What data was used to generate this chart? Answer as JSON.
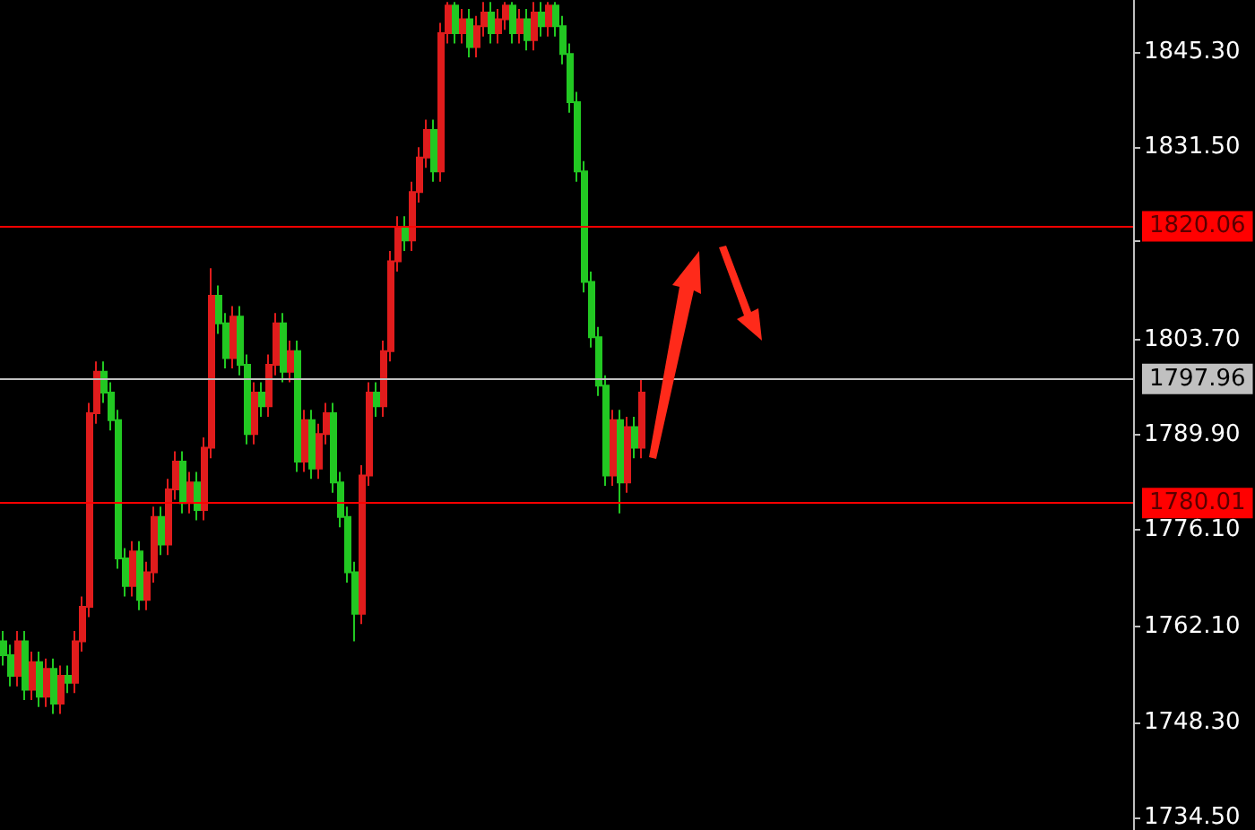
{
  "chart_data": {
    "type": "candlestick",
    "categories": [
      null,
      null,
      null,
      null,
      null,
      null,
      null,
      null,
      null,
      null,
      null,
      null,
      null,
      null,
      null,
      null,
      null,
      null,
      null,
      null,
      null,
      null,
      null,
      null,
      null,
      null,
      null,
      null,
      null,
      null,
      null,
      null,
      null,
      null,
      null,
      null,
      null,
      null,
      null,
      null,
      null,
      null,
      null,
      null,
      null,
      null,
      null,
      null,
      null,
      null,
      null,
      null,
      null,
      null,
      null,
      null,
      null,
      null,
      null,
      null,
      null,
      null,
      null,
      null,
      null,
      null,
      null,
      null,
      null,
      null,
      null,
      null,
      null,
      null,
      null,
      null,
      null,
      null,
      null,
      null,
      null,
      null,
      null,
      null,
      null,
      null,
      null,
      null,
      null,
      null,
      null,
      null,
      null,
      null,
      null,
      null,
      null,
      null,
      null,
      null,
      null,
      null,
      null,
      null,
      null,
      null,
      null,
      null,
      null,
      null,
      null,
      null,
      null,
      null,
      null,
      null,
      null,
      null,
      null,
      null,
      null,
      null,
      null,
      null,
      null,
      null,
      null,
      null,
      null,
      null,
      null,
      null,
      null,
      null,
      null,
      null,
      null,
      null,
      null,
      null,
      null,
      null,
      null,
      null,
      null,
      null,
      null,
      null,
      null,
      null,
      null,
      null,
      null,
      null,
      null,
      null,
      null,
      null
    ],
    "ohlc": [
      [
        1760,
        1761.5,
        1756.5,
        1758
      ],
      [
        1758,
        1759.5,
        1753.5,
        1755
      ],
      [
        1755,
        1761.5,
        1753.5,
        1760
      ],
      [
        1760,
        1761.5,
        1751.5,
        1753
      ],
      [
        1753,
        1758.5,
        1751.5,
        1757
      ],
      [
        1757,
        1758.5,
        1750.5,
        1752
      ],
      [
        1752,
        1757.5,
        1750.5,
        1756
      ],
      [
        1756,
        1757.5,
        1749.5,
        1751
      ],
      [
        1751,
        1756.5,
        1749.5,
        1755
      ],
      [
        1755,
        1756.5,
        1752.5,
        1754
      ],
      [
        1754,
        1761.5,
        1752.5,
        1760
      ],
      [
        1760,
        1766.5,
        1758.5,
        1765
      ],
      [
        1765,
        1794.5,
        1763.5,
        1793
      ],
      [
        1793,
        1800.5,
        1791.5,
        1799
      ],
      [
        1799,
        1800.5,
        1794.5,
        1796
      ],
      [
        1796,
        1797.5,
        1790.5,
        1792
      ],
      [
        1792,
        1793.5,
        1770.5,
        1772
      ],
      [
        1772,
        1773.5,
        1766.5,
        1768
      ],
      [
        1768,
        1774.5,
        1766.5,
        1773
      ],
      [
        1773,
        1774.5,
        1764.5,
        1766
      ],
      [
        1766,
        1771.5,
        1764.5,
        1770
      ],
      [
        1770,
        1779.5,
        1768.5,
        1778
      ],
      [
        1778,
        1779.5,
        1772.5,
        1774
      ],
      [
        1774,
        1783.5,
        1772.5,
        1782
      ],
      [
        1782,
        1787.5,
        1780.5,
        1786
      ],
      [
        1786,
        1787.5,
        1778.5,
        1780
      ],
      [
        1780,
        1784.5,
        1778.5,
        1783
      ],
      [
        1783,
        1784.5,
        1777.5,
        1779
      ],
      [
        1779,
        1789.5,
        1777.5,
        1788
      ],
      [
        1788,
        1814,
        1786.5,
        1810
      ],
      [
        1810,
        1811.5,
        1804.5,
        1806
      ],
      [
        1806,
        1807.5,
        1799.5,
        1801
      ],
      [
        1801,
        1808.5,
        1799.5,
        1807
      ],
      [
        1807,
        1808.5,
        1798.5,
        1800
      ],
      [
        1800,
        1801.5,
        1788.5,
        1790
      ],
      [
        1790,
        1797.5,
        1788.5,
        1796
      ],
      [
        1796,
        1797.5,
        1792.5,
        1794
      ],
      [
        1794,
        1801.5,
        1792.5,
        1800
      ],
      [
        1800,
        1807.5,
        1798.5,
        1806
      ],
      [
        1806,
        1807.5,
        1797.5,
        1799
      ],
      [
        1799,
        1803.5,
        1797.5,
        1802
      ],
      [
        1802,
        1803.5,
        1784.5,
        1786
      ],
      [
        1786,
        1793.5,
        1784.5,
        1792
      ],
      [
        1792,
        1793.5,
        1783.5,
        1785
      ],
      [
        1785,
        1791.5,
        1783.5,
        1790
      ],
      [
        1790,
        1794.5,
        1788.5,
        1793
      ],
      [
        1793,
        1794.5,
        1781.5,
        1783
      ],
      [
        1783,
        1784.5,
        1776.5,
        1778
      ],
      [
        1778,
        1779.5,
        1768.5,
        1770
      ],
      [
        1770,
        1771.5,
        1760,
        1764
      ],
      [
        1764,
        1785.5,
        1762.5,
        1784
      ],
      [
        1784,
        1797.5,
        1782.5,
        1796
      ],
      [
        1796,
        1797.5,
        1792.5,
        1794
      ],
      [
        1794,
        1803.5,
        1792.5,
        1802
      ],
      [
        1802,
        1816.5,
        1800.5,
        1815
      ],
      [
        1815,
        1821.5,
        1813.5,
        1820
      ],
      [
        1820,
        1821.5,
        1816.5,
        1818
      ],
      [
        1818,
        1826.5,
        1816.5,
        1825
      ],
      [
        1825,
        1831.5,
        1823.5,
        1830
      ],
      [
        1830,
        1835.5,
        1828.5,
        1834
      ],
      [
        1834,
        1835.5,
        1826.5,
        1828
      ],
      [
        1828,
        1849.5,
        1826.5,
        1848
      ],
      [
        1848,
        1852.5,
        1846.5,
        1852
      ],
      [
        1852,
        1852.5,
        1846.5,
        1848
      ],
      [
        1848,
        1851.5,
        1846.5,
        1850
      ],
      [
        1850,
        1851.5,
        1844.5,
        1846
      ],
      [
        1846,
        1850.5,
        1844.5,
        1849
      ],
      [
        1849,
        1852.5,
        1847.5,
        1851
      ],
      [
        1851,
        1852.5,
        1846.5,
        1848
      ],
      [
        1848,
        1851.5,
        1846.5,
        1850
      ],
      [
        1850,
        1852.5,
        1848.5,
        1852
      ],
      [
        1852,
        1852.5,
        1846.5,
        1848
      ],
      [
        1848,
        1851.5,
        1846.5,
        1850
      ],
      [
        1850,
        1851.5,
        1845.5,
        1847
      ],
      [
        1847,
        1852.5,
        1845.5,
        1851
      ],
      [
        1851,
        1852.5,
        1847.5,
        1849
      ],
      [
        1849,
        1852.5,
        1847.5,
        1852
      ],
      [
        1852,
        1852.5,
        1847.5,
        1849
      ],
      [
        1849,
        1850.5,
        1843.5,
        1845
      ],
      [
        1845,
        1846.5,
        1836.5,
        1838
      ],
      [
        1838,
        1839.5,
        1826.5,
        1828
      ],
      [
        1828,
        1829.5,
        1810.5,
        1812
      ],
      [
        1812,
        1813.5,
        1802.5,
        1804
      ],
      [
        1804,
        1805.5,
        1795.5,
        1797
      ],
      [
        1797,
        1798.5,
        1782.5,
        1784
      ],
      [
        1784,
        1793.5,
        1782.5,
        1792
      ],
      [
        1792,
        1793.5,
        1778.5,
        1783
      ],
      [
        1783,
        1792.5,
        1781.5,
        1791
      ],
      [
        1791,
        1792.5,
        1786.5,
        1788
      ],
      [
        1788,
        1798,
        1786.5,
        1796
      ],
      null,
      null,
      null,
      null,
      null,
      null,
      null,
      null,
      null,
      null,
      null,
      null,
      null,
      null,
      null,
      null,
      null,
      null,
      null,
      null,
      null,
      null,
      null,
      null,
      null,
      null,
      null,
      null,
      null,
      null,
      null,
      null,
      null,
      null,
      null,
      null,
      null,
      null,
      null,
      null,
      null,
      null,
      null,
      null,
      null,
      null,
      null,
      null,
      null,
      null,
      null,
      null,
      null,
      null,
      null,
      null,
      null,
      null,
      null,
      null,
      null,
      null,
      null,
      null,
      null,
      null,
      null,
      null
    ],
    "colors": [
      "#22c822",
      "#22c822",
      "#e01c1c",
      "#22c822",
      "#e01c1c",
      "#22c822",
      "#e01c1c",
      "#22c822",
      "#e01c1c",
      "#22c822",
      "#e01c1c",
      "#e01c1c",
      "#e01c1c",
      "#e01c1c",
      "#22c822",
      "#22c822",
      "#22c822",
      "#22c822",
      "#e01c1c",
      "#22c822",
      "#e01c1c",
      "#e01c1c",
      "#22c822",
      "#e01c1c",
      "#e01c1c",
      "#22c822",
      "#e01c1c",
      "#22c822",
      "#e01c1c",
      "#e01c1c",
      "#22c822",
      "#22c822",
      "#e01c1c",
      "#22c822",
      "#22c822",
      "#e01c1c",
      "#22c822",
      "#e01c1c",
      "#e01c1c",
      "#22c822",
      "#e01c1c",
      "#22c822",
      "#e01c1c",
      "#22c822",
      "#e01c1c",
      "#e01c1c",
      "#22c822",
      "#22c822",
      "#22c822",
      "#22c822",
      "#e01c1c",
      "#e01c1c",
      "#22c822",
      "#e01c1c",
      "#e01c1c",
      "#e01c1c",
      "#22c822",
      "#e01c1c",
      "#e01c1c",
      "#e01c1c",
      "#22c822",
      "#e01c1c",
      "#e01c1c",
      "#22c822",
      "#e01c1c",
      "#22c822",
      "#e01c1c",
      "#e01c1c",
      "#22c822",
      "#e01c1c",
      "#e01c1c",
      "#22c822",
      "#e01c1c",
      "#22c822",
      "#e01c1c",
      "#22c822",
      "#e01c1c",
      "#22c822",
      "#22c822",
      "#22c822",
      "#22c822",
      "#22c822",
      "#22c822",
      "#22c822",
      "#22c822",
      "#e01c1c",
      "#22c822",
      "#e01c1c",
      "#22c822",
      "#e01c1c",
      null,
      null,
      null,
      null,
      null,
      null,
      null,
      null,
      null,
      null,
      null,
      null,
      null,
      null,
      null,
      null,
      null,
      null,
      null,
      null,
      null,
      null,
      null,
      null,
      null,
      null,
      null,
      null,
      null,
      null,
      null,
      null,
      null,
      null,
      null,
      null,
      null,
      null,
      null,
      null,
      null,
      null,
      null,
      null,
      null,
      null,
      null,
      null,
      null,
      null,
      null,
      null,
      null,
      null,
      null,
      null,
      null,
      null,
      null,
      null,
      null,
      null,
      null,
      null,
      null,
      null,
      null,
      null
    ],
    "ylim": [
      1732.7,
      1852.8
    ],
    "yticks": [
      {
        "value": 1734.5,
        "label": "1734.50"
      },
      {
        "value": 1748.3,
        "label": "1748.30"
      },
      {
        "value": 1762.1,
        "label": "1762.10"
      },
      {
        "value": 1776.1,
        "label": "1776.10"
      },
      {
        "value": 1789.9,
        "label": "1789.90"
      },
      {
        "value": 1803.7,
        "label": "1803.70"
      },
      {
        "value": 1817.9,
        "label": null
      },
      {
        "value": 1831.5,
        "label": "1831.50"
      },
      {
        "value": 1845.3,
        "label": "1845.30"
      }
    ],
    "tick_labels": "y",
    "ref_lines": [
      {
        "axis": "y",
        "value": 1820.06,
        "label": "1820.06",
        "color": "#ff0000"
      },
      {
        "axis": "y",
        "value": 1797.96,
        "label": "1797.96",
        "color": "#c0c0c0"
      },
      {
        "axis": "y",
        "value": 1780.01,
        "label": "1780.01",
        "color": "#ff0000"
      }
    ]
  }
}
